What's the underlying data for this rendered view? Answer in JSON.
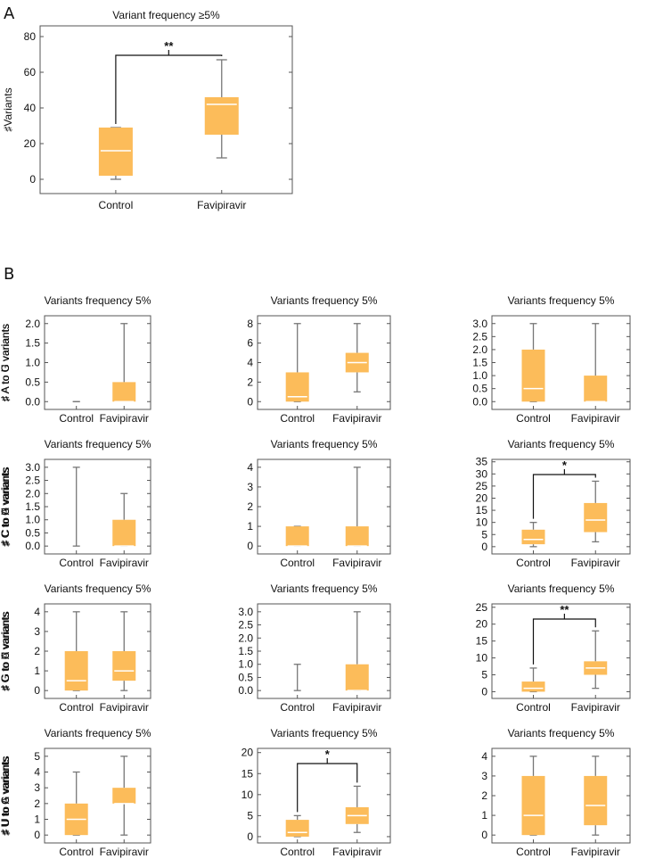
{
  "panel_labels": [
    "A",
    "B"
  ],
  "colors": {
    "box": "#FCBC5A",
    "median": "#ffffff",
    "whisker": "#777777",
    "frame": "#555555",
    "bracket": "#111111"
  },
  "chart_data": [
    {
      "id": "A",
      "type": "box",
      "title": "Variant frequency ≥5%",
      "ylabel": "♯Variants",
      "categories": [
        "Control",
        "Favipiravir"
      ],
      "ylim": [
        -8,
        86
      ],
      "yticks": [
        0,
        20,
        40,
        60,
        80
      ],
      "ytick_labels": [
        "0",
        "20",
        "40",
        "60",
        "80"
      ],
      "boxes": [
        {
          "min": 0,
          "q1": 2,
          "median": 16,
          "q3": 29,
          "max": 29
        },
        {
          "min": 12,
          "q1": 25,
          "median": 42,
          "q3": 46,
          "max": 67
        }
      ],
      "significance": "**"
    },
    {
      "id": "B1",
      "type": "box",
      "title": "Variants frequency 5%",
      "ylabel": "♯ A to C variants",
      "categories": [
        "Control",
        "Favipiravir"
      ],
      "ylim": [
        -0.2,
        2.2
      ],
      "yticks": [
        0,
        0.5,
        1,
        1.5,
        2
      ],
      "ytick_labels": [
        "0.0",
        "0.5",
        "1.0",
        "1.5",
        "2.0"
      ],
      "boxes": [
        {
          "min": 0,
          "q1": 0,
          "median": 0,
          "q3": 0,
          "max": 0
        },
        {
          "min": 0,
          "q1": 0,
          "median": 0,
          "q3": 0.5,
          "max": 2
        }
      ],
      "significance": null
    },
    {
      "id": "B2",
      "type": "box",
      "title": "Variants frequency 5%",
      "ylabel": "♯ A to G variants",
      "categories": [
        "Control",
        "Favipiravir"
      ],
      "ylim": [
        -0.8,
        8.8
      ],
      "yticks": [
        0,
        2,
        4,
        6,
        8
      ],
      "ytick_labels": [
        "0",
        "2",
        "4",
        "6",
        "8"
      ],
      "boxes": [
        {
          "min": 0,
          "q1": 0,
          "median": 0.5,
          "q3": 3,
          "max": 8
        },
        {
          "min": 1,
          "q1": 3,
          "median": 4,
          "q3": 5,
          "max": 8
        }
      ],
      "significance": null
    },
    {
      "id": "B3",
      "type": "box",
      "title": "Variants frequency 5%",
      "ylabel": "♯ A to U variants",
      "categories": [
        "Control",
        "Favipiravir"
      ],
      "ylim": [
        -0.3,
        3.3
      ],
      "yticks": [
        0,
        0.5,
        1,
        1.5,
        2,
        2.5,
        3
      ],
      "ytick_labels": [
        "0.0",
        "0.5",
        "1.0",
        "1.5",
        "2.0",
        "2.5",
        "3.0"
      ],
      "boxes": [
        {
          "min": 0,
          "q1": 0,
          "median": 0.5,
          "q3": 2,
          "max": 3
        },
        {
          "min": 0,
          "q1": 0,
          "median": 0,
          "q3": 1,
          "max": 3
        }
      ],
      "significance": null
    },
    {
      "id": "B4",
      "type": "box",
      "title": "Variants frequency 5%",
      "ylabel": "♯ C to A variants",
      "categories": [
        "Control",
        "Favipiravir"
      ],
      "ylim": [
        -0.3,
        3.3
      ],
      "yticks": [
        0,
        0.5,
        1,
        1.5,
        2,
        2.5,
        3
      ],
      "ytick_labels": [
        "0.0",
        "0.5",
        "1.0",
        "1.5",
        "2.0",
        "2.5",
        "3.0"
      ],
      "boxes": [
        {
          "min": 0,
          "q1": 0,
          "median": 0,
          "q3": 0,
          "max": 3
        },
        {
          "min": 0,
          "q1": 0,
          "median": 0,
          "q3": 1,
          "max": 2
        }
      ],
      "significance": null
    },
    {
      "id": "B5",
      "type": "box",
      "title": "Variants frequency 5%",
      "ylabel": "♯ C to G variants",
      "categories": [
        "Control",
        "Favipiravir"
      ],
      "ylim": [
        -0.4,
        4.4
      ],
      "yticks": [
        0,
        1,
        2,
        3,
        4
      ],
      "ytick_labels": [
        "0",
        "1",
        "2",
        "3",
        "4"
      ],
      "boxes": [
        {
          "min": 0,
          "q1": 0,
          "median": 0,
          "q3": 1,
          "max": 1
        },
        {
          "min": 0,
          "q1": 0,
          "median": 0,
          "q3": 1,
          "max": 4
        }
      ],
      "significance": null
    },
    {
      "id": "B6",
      "type": "box",
      "title": "Variants frequency 5%",
      "ylabel": "♯ C to U variants",
      "categories": [
        "Control",
        "Favipiravir"
      ],
      "ylim": [
        -3,
        36
      ],
      "yticks": [
        0,
        5,
        10,
        15,
        20,
        25,
        30,
        35
      ],
      "ytick_labels": [
        "0",
        "5",
        "10",
        "15",
        "20",
        "25",
        "30",
        "35"
      ],
      "boxes": [
        {
          "min": 0,
          "q1": 1,
          "median": 3,
          "q3": 7,
          "max": 10
        },
        {
          "min": 2,
          "q1": 6,
          "median": 11,
          "q3": 18,
          "max": 27
        }
      ],
      "significance": "*"
    },
    {
      "id": "B7",
      "type": "box",
      "title": "Variants frequency 5%",
      "ylabel": "♯ G to A variants",
      "categories": [
        "Control",
        "Favipiravir"
      ],
      "ylim": [
        -0.4,
        4.4
      ],
      "yticks": [
        0,
        1,
        2,
        3,
        4
      ],
      "ytick_labels": [
        "0",
        "1",
        "2",
        "3",
        "4"
      ],
      "boxes": [
        {
          "min": 0,
          "q1": 0,
          "median": 0.5,
          "q3": 2,
          "max": 4
        },
        {
          "min": 0,
          "q1": 0.5,
          "median": 1,
          "q3": 2,
          "max": 4
        }
      ],
      "significance": null
    },
    {
      "id": "B8",
      "type": "box",
      "title": "Variants frequency 5%",
      "ylabel": "♯ G to C variants",
      "categories": [
        "Control",
        "Favipiravir"
      ],
      "ylim": [
        -0.3,
        3.3
      ],
      "yticks": [
        0,
        0.5,
        1,
        1.5,
        2,
        2.5,
        3
      ],
      "ytick_labels": [
        "0.0",
        "0.5",
        "1.0",
        "1.5",
        "2.0",
        "2.5",
        "3.0"
      ],
      "boxes": [
        {
          "min": 0,
          "q1": 0,
          "median": 0,
          "q3": 0,
          "max": 1
        },
        {
          "min": 0,
          "q1": 0,
          "median": 0,
          "q3": 1,
          "max": 3
        }
      ],
      "significance": null
    },
    {
      "id": "B9",
      "type": "box",
      "title": "Variants frequency 5%",
      "ylabel": "♯ G to U variants",
      "categories": [
        "Control",
        "Favipiravir"
      ],
      "ylim": [
        -2,
        26
      ],
      "yticks": [
        0,
        5,
        10,
        15,
        20,
        25
      ],
      "ytick_labels": [
        "0",
        "5",
        "10",
        "15",
        "20",
        "25"
      ],
      "boxes": [
        {
          "min": 0,
          "q1": 0,
          "median": 1,
          "q3": 3,
          "max": 7
        },
        {
          "min": 1,
          "q1": 5,
          "median": 7,
          "q3": 9,
          "max": 18
        }
      ],
      "significance": "**"
    },
    {
      "id": "B10",
      "type": "box",
      "title": "Variants frequency 5%",
      "ylabel": "♯ U to A variants",
      "categories": [
        "Control",
        "Favipiravir"
      ],
      "ylim": [
        -0.5,
        5.5
      ],
      "yticks": [
        0,
        1,
        2,
        3,
        4,
        5
      ],
      "ytick_labels": [
        "0",
        "1",
        "2",
        "3",
        "4",
        "5"
      ],
      "boxes": [
        {
          "min": 0,
          "q1": 0,
          "median": 1,
          "q3": 2,
          "max": 4
        },
        {
          "min": 0,
          "q1": 2,
          "median": 2,
          "q3": 3,
          "max": 5
        }
      ],
      "significance": null
    },
    {
      "id": "B11",
      "type": "box",
      "title": "Variants frequency 5%",
      "ylabel": "♯ U to C variants",
      "categories": [
        "Control",
        "Favipiravir"
      ],
      "ylim": [
        -1.5,
        21
      ],
      "yticks": [
        0,
        5,
        10,
        15,
        20
      ],
      "ytick_labels": [
        "0",
        "5",
        "10",
        "15",
        "20"
      ],
      "boxes": [
        {
          "min": 0,
          "q1": 0,
          "median": 1,
          "q3": 4,
          "max": 5
        },
        {
          "min": 1,
          "q1": 3,
          "median": 5,
          "q3": 7,
          "max": 12
        }
      ],
      "significance": "*"
    },
    {
      "id": "B12",
      "type": "box",
      "title": "Variants frequency 5%",
      "ylabel": "♯ U to G variants",
      "categories": [
        "Control",
        "Favipiravir"
      ],
      "ylim": [
        -0.4,
        4.4
      ],
      "yticks": [
        0,
        1,
        2,
        3,
        4
      ],
      "ytick_labels": [
        "0",
        "1",
        "2",
        "3",
        "4"
      ],
      "boxes": [
        {
          "min": 0,
          "q1": 0,
          "median": 1,
          "q3": 3,
          "max": 4
        },
        {
          "min": 0,
          "q1": 0.5,
          "median": 1.5,
          "q3": 3,
          "max": 4
        }
      ],
      "significance": null
    }
  ]
}
